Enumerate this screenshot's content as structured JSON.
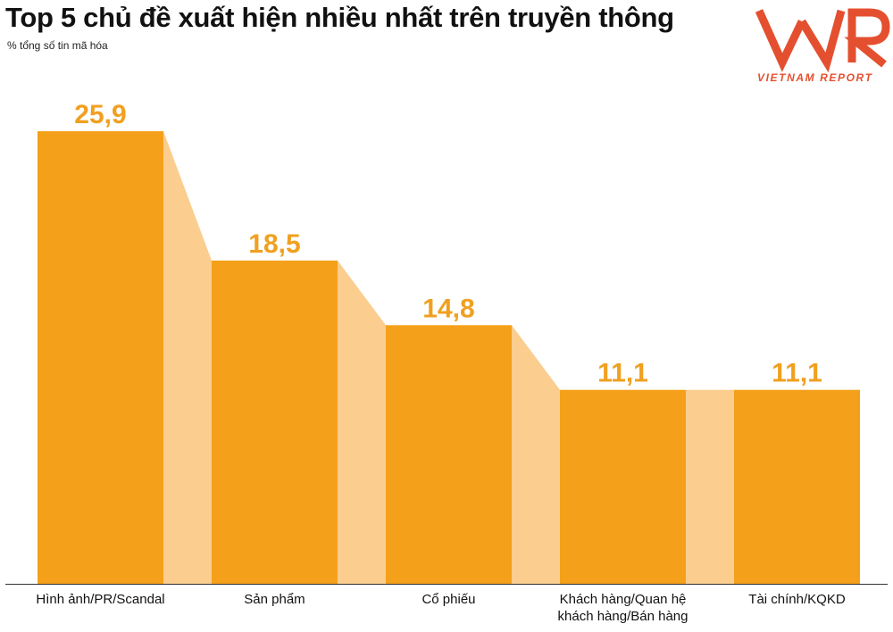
{
  "title": "Top 5 chủ đề xuất hiện nhiều nhất trên truyền thông",
  "subtitle": "% tổng số tin mã hóa",
  "logo": {
    "brand": "VNR",
    "tagline": "VIETNAM REPORT"
  },
  "colors": {
    "bar": "#F5A01A",
    "connector": "#FBCD8E",
    "value_label": "#F0A020",
    "axis": "#333333",
    "logo": "#E4502F"
  },
  "chart_data": {
    "type": "bar",
    "categories": [
      "Hình ảnh/PR/Scandal",
      "Sản phẩm",
      "Cổ phiếu",
      "Khách hàng/Quan hệ khách hàng/Bán hàng",
      "Tài chính/KQKD"
    ],
    "category_lines": [
      [
        "Hình ảnh/PR/Scandal"
      ],
      [
        "Sản phẩm"
      ],
      [
        "Cổ phiếu"
      ],
      [
        "Khách hàng/Quan hệ",
        "khách hàng/Bán hàng"
      ],
      [
        "Tài chính/KQKD"
      ]
    ],
    "values": [
      25.9,
      18.5,
      14.8,
      11.1,
      11.1
    ],
    "value_labels": [
      "25,9",
      "18,5",
      "14,8",
      "11,1",
      "11,1"
    ],
    "ylim": [
      0,
      25.9
    ],
    "grid": false,
    "legend": "none"
  }
}
